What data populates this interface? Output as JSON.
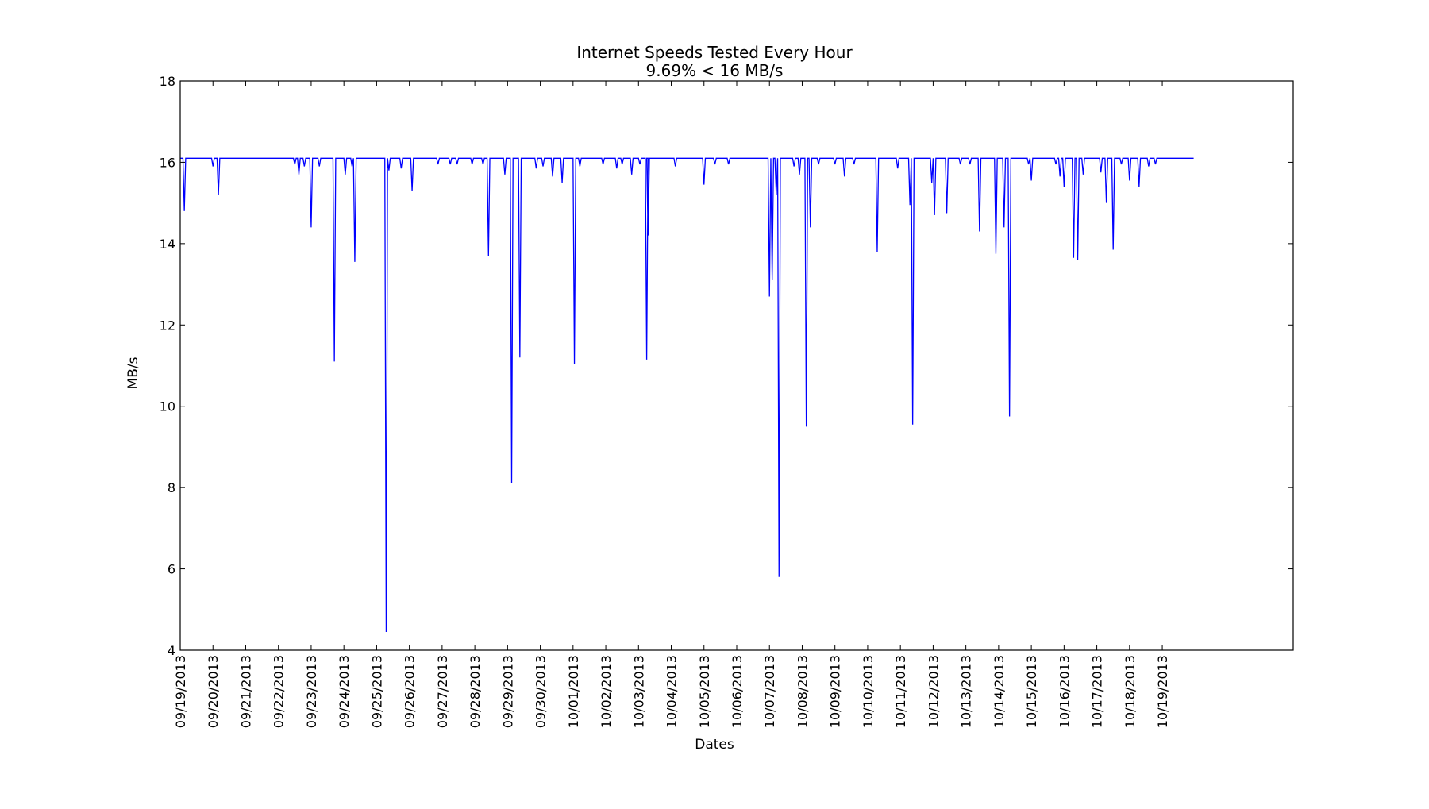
{
  "chart_data": {
    "type": "line",
    "title": "Internet Speeds Tested Every Hour",
    "subtitle": "9.69% < 16 MB/s",
    "xlabel": "Dates",
    "ylabel": "MB/s",
    "ylim": [
      4,
      18
    ],
    "yticks": [
      4,
      6,
      8,
      10,
      12,
      14,
      16,
      18
    ],
    "xlim": [
      "09/19/2013 00:00",
      "10/23/2013 00:00"
    ],
    "xticks": [
      "09/19/2013",
      "09/20/2013",
      "09/21/2013",
      "09/22/2013",
      "09/23/2013",
      "09/24/2013",
      "09/25/2013",
      "09/26/2013",
      "09/27/2013",
      "09/28/2013",
      "09/29/2013",
      "09/30/2013",
      "10/01/2013",
      "10/02/2013",
      "10/03/2013",
      "10/04/2013",
      "10/05/2013",
      "10/06/2013",
      "10/07/2013",
      "10/08/2013",
      "10/09/2013",
      "10/10/2013",
      "10/11/2013",
      "10/12/2013",
      "10/13/2013",
      "10/14/2013",
      "10/15/2013",
      "10/16/2013",
      "10/17/2013",
      "10/18/2013",
      "10/19/2013"
    ],
    "grid": false,
    "series": [
      {
        "color": "#0000ff",
        "baseline": 16.1,
        "x_start": "09/19/2013 00:00",
        "x_end": "10/19/2013 23:00",
        "dips": [
          {
            "x": "09/19/2013 03:00",
            "y": 14.8
          },
          {
            "x": "09/20/2013 00:00",
            "y": 15.9
          },
          {
            "x": "09/20/2013 04:00",
            "y": 15.2
          },
          {
            "x": "09/22/2013 12:00",
            "y": 15.95
          },
          {
            "x": "09/22/2013 15:00",
            "y": 15.7
          },
          {
            "x": "09/22/2013 19:00",
            "y": 15.9
          },
          {
            "x": "09/23/2013 00:00",
            "y": 14.4
          },
          {
            "x": "09/23/2013 06:00",
            "y": 15.9
          },
          {
            "x": "09/23/2013 17:00",
            "y": 11.1
          },
          {
            "x": "09/24/2013 01:00",
            "y": 15.7
          },
          {
            "x": "09/24/2013 06:00",
            "y": 15.9
          },
          {
            "x": "09/24/2013 08:00",
            "y": 13.55
          },
          {
            "x": "09/25/2013 07:00",
            "y": 4.45
          },
          {
            "x": "09/25/2013 09:00",
            "y": 15.8
          },
          {
            "x": "09/25/2013 18:00",
            "y": 15.85
          },
          {
            "x": "09/26/2013 02:00",
            "y": 15.3
          },
          {
            "x": "09/26/2013 21:00",
            "y": 15.95
          },
          {
            "x": "09/27/2013 06:00",
            "y": 15.95
          },
          {
            "x": "09/27/2013 11:00",
            "y": 15.95
          },
          {
            "x": "09/27/2013 22:00",
            "y": 15.95
          },
          {
            "x": "09/28/2013 06:00",
            "y": 15.95
          },
          {
            "x": "09/28/2013 10:00",
            "y": 13.7
          },
          {
            "x": "09/28/2013 22:00",
            "y": 15.7
          },
          {
            "x": "09/29/2013 03:00",
            "y": 8.1
          },
          {
            "x": "09/29/2013 09:00",
            "y": 11.2
          },
          {
            "x": "09/29/2013 21:00",
            "y": 15.85
          },
          {
            "x": "09/30/2013 02:00",
            "y": 15.9
          },
          {
            "x": "09/30/2013 09:00",
            "y": 15.65
          },
          {
            "x": "09/30/2013 16:00",
            "y": 15.5
          },
          {
            "x": "10/01/2013 01:00",
            "y": 11.05
          },
          {
            "x": "10/01/2013 05:00",
            "y": 15.9
          },
          {
            "x": "10/01/2013 22:00",
            "y": 15.95
          },
          {
            "x": "10/02/2013 08:00",
            "y": 15.85
          },
          {
            "x": "10/02/2013 12:00",
            "y": 15.95
          },
          {
            "x": "10/02/2013 19:00",
            "y": 15.7
          },
          {
            "x": "10/03/2013 01:00",
            "y": 15.95
          },
          {
            "x": "10/03/2013 06:00",
            "y": 11.15
          },
          {
            "x": "10/03/2013 07:00",
            "y": 14.2
          },
          {
            "x": "10/04/2013 03:00",
            "y": 15.9
          },
          {
            "x": "10/05/2013 00:00",
            "y": 15.45
          },
          {
            "x": "10/05/2013 08:00",
            "y": 15.95
          },
          {
            "x": "10/05/2013 18:00",
            "y": 15.95
          },
          {
            "x": "10/07/2013 00:00",
            "y": 12.7
          },
          {
            "x": "10/07/2013 02:00",
            "y": 13.1
          },
          {
            "x": "10/07/2013 05:00",
            "y": 15.2
          },
          {
            "x": "10/07/2013 07:00",
            "y": 5.8
          },
          {
            "x": "10/07/2013 18:00",
            "y": 15.9
          },
          {
            "x": "10/07/2013 22:00",
            "y": 15.7
          },
          {
            "x": "10/08/2013 03:00",
            "y": 9.5
          },
          {
            "x": "10/08/2013 06:00",
            "y": 14.4
          },
          {
            "x": "10/08/2013 12:00",
            "y": 15.95
          },
          {
            "x": "10/09/2013 00:00",
            "y": 15.95
          },
          {
            "x": "10/09/2013 07:00",
            "y": 15.65
          },
          {
            "x": "10/09/2013 14:00",
            "y": 15.95
          },
          {
            "x": "10/10/2013 07:00",
            "y": 13.8
          },
          {
            "x": "10/10/2013 22:00",
            "y": 15.85
          },
          {
            "x": "10/11/2013 07:00",
            "y": 14.95
          },
          {
            "x": "10/11/2013 09:00",
            "y": 9.55
          },
          {
            "x": "10/11/2013 23:00",
            "y": 15.5
          },
          {
            "x": "10/12/2013 01:00",
            "y": 14.7
          },
          {
            "x": "10/12/2013 10:00",
            "y": 14.75
          },
          {
            "x": "10/12/2013 20:00",
            "y": 15.95
          },
          {
            "x": "10/13/2013 03:00",
            "y": 15.95
          },
          {
            "x": "10/13/2013 10:00",
            "y": 14.3
          },
          {
            "x": "10/13/2013 22:00",
            "y": 13.75
          },
          {
            "x": "10/14/2013 04:00",
            "y": 14.4
          },
          {
            "x": "10/14/2013 08:00",
            "y": 9.75
          },
          {
            "x": "10/14/2013 22:00",
            "y": 15.95
          },
          {
            "x": "10/15/2013 00:00",
            "y": 15.55
          },
          {
            "x": "10/15/2013 18:00",
            "y": 15.95
          },
          {
            "x": "10/15/2013 21:00",
            "y": 15.65
          },
          {
            "x": "10/16/2013 00:00",
            "y": 15.4
          },
          {
            "x": "10/16/2013 07:00",
            "y": 13.65
          },
          {
            "x": "10/16/2013 10:00",
            "y": 13.6
          },
          {
            "x": "10/16/2013 14:00",
            "y": 15.7
          },
          {
            "x": "10/17/2013 03:00",
            "y": 15.75
          },
          {
            "x": "10/17/2013 07:00",
            "y": 15.0
          },
          {
            "x": "10/17/2013 12:00",
            "y": 13.85
          },
          {
            "x": "10/17/2013 18:00",
            "y": 15.95
          },
          {
            "x": "10/18/2013 00:00",
            "y": 15.55
          },
          {
            "x": "10/18/2013 07:00",
            "y": 15.4
          },
          {
            "x": "10/18/2013 14:00",
            "y": 15.9
          },
          {
            "x": "10/18/2013 19:00",
            "y": 15.95
          }
        ]
      }
    ]
  }
}
